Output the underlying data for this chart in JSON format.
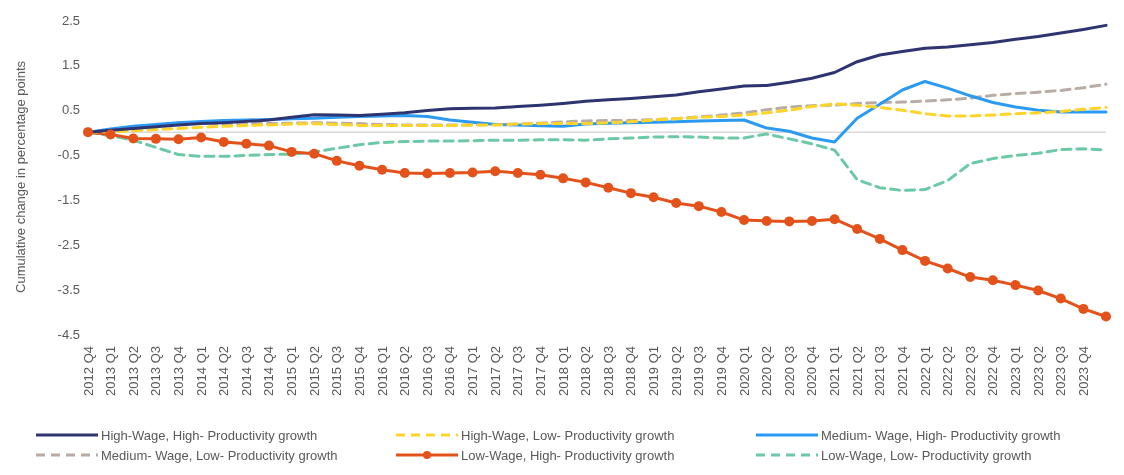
{
  "chart_data": {
    "type": "line",
    "ylabel": "Cumulative change in percentage points",
    "categories": [
      "2012 Q4",
      "2013 Q1",
      "2013 Q2",
      "2013 Q3",
      "2013 Q4",
      "2014 Q1",
      "2014 Q2",
      "2014 Q3",
      "2014 Q4",
      "2015 Q1",
      "2015 Q2",
      "2015 Q3",
      "2015 Q4",
      "2016 Q1",
      "2016 Q2",
      "2016 Q3",
      "2016 Q4",
      "2017 Q1",
      "2017 Q2",
      "2017 Q3",
      "2017 Q4",
      "2018 Q1",
      "2018 Q2",
      "2018 Q3",
      "2018 Q4",
      "2019 Q1",
      "2019 Q2",
      "2019 Q3",
      "2019 Q4",
      "2020 Q1",
      "2020 Q2",
      "2020 Q3",
      "2020 Q4",
      "2021 Q1",
      "2021 Q2",
      "2021 Q3",
      "2021 Q4",
      "2022 Q1",
      "2022 Q2",
      "2022 Q3",
      "2022 Q4",
      "2023 Q1",
      "2023 Q2",
      "2023 Q3",
      "2023 Q4",
      null
    ],
    "series": [
      {
        "name": "High-Wage, High- Productivity growth",
        "color": "#2e3470",
        "line_style": "solid",
        "marker": "none",
        "values": [
          0,
          0.04,
          0.08,
          0.12,
          0.16,
          0.19,
          0.21,
          0.24,
          0.27,
          0.33,
          0.39,
          0.38,
          0.37,
          0.4,
          0.43,
          0.48,
          0.52,
          0.53,
          0.54,
          0.57,
          0.6,
          0.64,
          0.69,
          0.72,
          0.75,
          0.79,
          0.83,
          0.9,
          0.96,
          1.03,
          1.04,
          1.11,
          1.2,
          1.33,
          1.57,
          1.72,
          1.8,
          1.87,
          1.9,
          1.95,
          2.0,
          2.07,
          2.13,
          2.21,
          2.29,
          2.38
        ]
      },
      {
        "name": "High-Wage, Low- Productivity growth",
        "color": "#ffd42a",
        "line_style": "dashed",
        "marker": "none",
        "values": [
          0,
          0.01,
          0.03,
          0.06,
          0.08,
          0.11,
          0.13,
          0.15,
          0.16,
          0.18,
          0.19,
          0.17,
          0.15,
          0.15,
          0.15,
          0.15,
          0.15,
          0.16,
          0.16,
          0.18,
          0.19,
          0.19,
          0.19,
          0.21,
          0.23,
          0.27,
          0.3,
          0.33,
          0.35,
          0.38,
          0.43,
          0.49,
          0.57,
          0.63,
          0.6,
          0.55,
          0.49,
          0.41,
          0.36,
          0.36,
          0.38,
          0.41,
          0.43,
          0.46,
          0.51,
          0.55
        ]
      },
      {
        "name": "Medium- Wage, High- Productivity growth",
        "color": "#2b9af3",
        "line_style": "solid",
        "marker": "none",
        "values": [
          0,
          0.07,
          0.13,
          0.17,
          0.21,
          0.24,
          0.26,
          0.27,
          0.28,
          0.3,
          0.31,
          0.33,
          0.35,
          0.36,
          0.37,
          0.35,
          0.27,
          0.22,
          0.17,
          0.16,
          0.14,
          0.13,
          0.18,
          0.2,
          0.21,
          0.22,
          0.23,
          0.25,
          0.26,
          0.27,
          0.09,
          0.02,
          -0.13,
          -0.22,
          0.31,
          0.62,
          0.94,
          1.13,
          0.98,
          0.81,
          0.66,
          0.56,
          0.49,
          0.45,
          0.45,
          0.45
        ]
      },
      {
        "name": "Medium- Wage, Low- Productivity growth",
        "color": "#b8aca4",
        "line_style": "dashed",
        "marker": "none",
        "values": [
          0,
          0.04,
          0.08,
          0.15,
          0.21,
          0.2,
          0.19,
          0.19,
          0.19,
          0.2,
          0.21,
          0.2,
          0.19,
          0.17,
          0.16,
          0.16,
          0.16,
          0.16,
          0.17,
          0.18,
          0.2,
          0.23,
          0.25,
          0.26,
          0.26,
          0.28,
          0.3,
          0.34,
          0.38,
          0.43,
          0.5,
          0.56,
          0.59,
          0.6,
          0.64,
          0.66,
          0.67,
          0.69,
          0.72,
          0.76,
          0.82,
          0.86,
          0.89,
          0.93,
          0.99,
          1.07
        ]
      },
      {
        "name": "Low-Wage, High- Productivity growth",
        "color": "#e4521b",
        "line_style": "solid",
        "marker": "circle",
        "values": [
          0,
          -0.05,
          -0.14,
          -0.15,
          -0.16,
          -0.12,
          -0.22,
          -0.26,
          -0.3,
          -0.44,
          -0.48,
          -0.64,
          -0.75,
          -0.84,
          -0.91,
          -0.92,
          -0.91,
          -0.9,
          -0.87,
          -0.91,
          -0.95,
          -1.03,
          -1.12,
          -1.24,
          -1.36,
          -1.45,
          -1.58,
          -1.65,
          -1.78,
          -1.96,
          -1.98,
          -1.99,
          -1.98,
          -1.94,
          -2.16,
          -2.38,
          -2.63,
          -2.87,
          -3.04,
          -3.23,
          -3.3,
          -3.41,
          -3.53,
          -3.71,
          -3.94,
          -4.11
        ]
      },
      {
        "name": "Low-Wage, Low- Productivity growth",
        "color": "#6cc9a6",
        "line_style": "dashed",
        "marker": "none",
        "values": [
          0,
          -0.08,
          -0.18,
          -0.34,
          -0.5,
          -0.54,
          -0.54,
          -0.52,
          -0.5,
          -0.49,
          -0.44,
          -0.36,
          -0.28,
          -0.23,
          -0.21,
          -0.2,
          -0.2,
          -0.19,
          -0.18,
          -0.18,
          -0.17,
          -0.17,
          -0.18,
          -0.15,
          -0.13,
          -0.11,
          -0.1,
          -0.11,
          -0.13,
          -0.13,
          -0.04,
          -0.15,
          -0.26,
          -0.4,
          -1.06,
          -1.24,
          -1.3,
          -1.28,
          -1.08,
          -0.7,
          -0.59,
          -0.52,
          -0.47,
          -0.39,
          -0.37,
          -0.4
        ]
      }
    ],
    "ylim": [
      -4.5,
      2.5
    ],
    "yticks": [
      -4.5,
      -3.5,
      -2.5,
      -1.5,
      -0.5,
      0.5,
      1.5,
      2.5
    ],
    "ref_lines": [
      {
        "axis": "y",
        "value": 0,
        "color": "#d9d9d9"
      }
    ],
    "grid": false,
    "legend": "bottom"
  }
}
